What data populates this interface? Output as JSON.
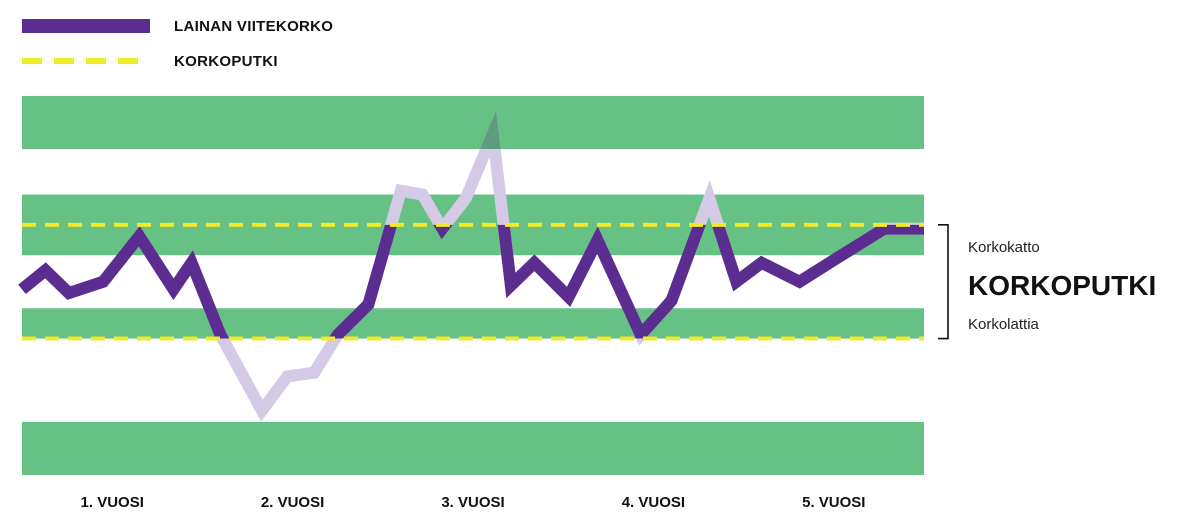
{
  "colors": {
    "band": "#66c184",
    "line": "#5b2d90",
    "line_faded": "#d5cae6",
    "line_overlap": "#5f9b80",
    "pipe": "#f0e92c",
    "text": "#111111"
  },
  "legend": [
    {
      "label": "LAINAN VIITEKORKO",
      "style": "solid",
      "color": "#5b2d90"
    },
    {
      "label": "KORKOPUTKI",
      "style": "dashed",
      "color": "#f0e92c"
    }
  ],
  "band_annotation": {
    "upper": "Korkokatto",
    "title": "KORKOPUTKI",
    "lower": "Korkolattia"
  },
  "chart_data": {
    "type": "line",
    "categories": [
      "1. VUOSI",
      "2. VUOSI",
      "3. VUOSI",
      "4. VUOSI",
      "5. VUOSI"
    ],
    "xlim": [
      0,
      5
    ],
    "ylim": [
      0,
      100
    ],
    "cap": 66,
    "floor": 36,
    "background_bands": [
      [
        0,
        14
      ],
      [
        36,
        44
      ],
      [
        58,
        74
      ],
      [
        86,
        100
      ]
    ],
    "series": [
      {
        "name": "LAINAN VIITEKORKO",
        "x": [
          0,
          0.13,
          0.26,
          0.45,
          0.65,
          0.84,
          0.94,
          1.1,
          1.33,
          1.47,
          1.62,
          1.75,
          1.92,
          2.1,
          2.22,
          2.33,
          2.46,
          2.61,
          2.71,
          2.84,
          3.03,
          3.19,
          3.43,
          3.6,
          3.81,
          3.96,
          4.1,
          4.31,
          4.51,
          4.78,
          5.0
        ],
        "y": [
          49,
          54,
          48,
          51,
          63,
          49,
          56,
          37,
          17,
          26,
          27,
          37,
          45,
          75,
          74,
          65,
          73,
          90,
          50,
          56,
          47,
          62,
          37,
          46,
          73,
          51,
          56,
          51,
          57,
          65,
          65
        ]
      },
      {
        "name": "KORKOPUTKI",
        "x": [
          0,
          5
        ],
        "y": [
          66,
          66
        ],
        "style": "dashed"
      },
      {
        "x": [
          0,
          5
        ],
        "y": [
          36,
          36
        ],
        "style": "dashed"
      }
    ]
  }
}
